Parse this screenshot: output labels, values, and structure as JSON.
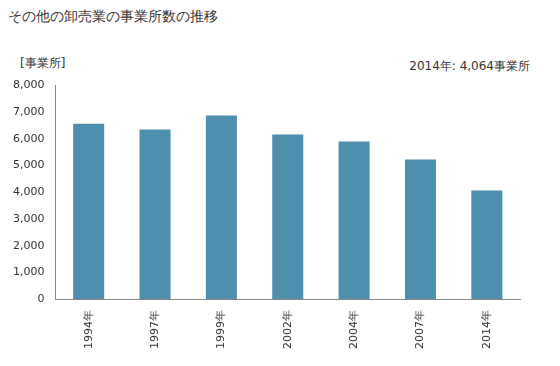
{
  "chart_data": {
    "type": "bar",
    "title": "その他の卸売業の事業所数の推移",
    "y_label": "[事業所]",
    "annotation": "2014年: 4,064事業所",
    "categories": [
      "1994年",
      "1997年",
      "1999年",
      "2002年",
      "2004年",
      "2007年",
      "2014年"
    ],
    "values": [
      6570,
      6350,
      6880,
      6170,
      5900,
      5230,
      4064
    ],
    "color": "#4d8fac",
    "ylim": [
      0,
      8000
    ],
    "yticks": [
      0,
      {
        "value": 1000,
        "label": "1,000"
      },
      {
        "value": 2000,
        "label": "2,000"
      },
      {
        "value": 3000,
        "label": "3,000"
      },
      {
        "value": 4000,
        "label": "4,000"
      },
      {
        "value": 5000,
        "label": "5,000"
      },
      {
        "value": 6000,
        "label": "6,000"
      },
      {
        "value": 7000,
        "label": "7,000"
      },
      {
        "value": 8000,
        "label": "8,000"
      }
    ],
    "grid": false
  }
}
